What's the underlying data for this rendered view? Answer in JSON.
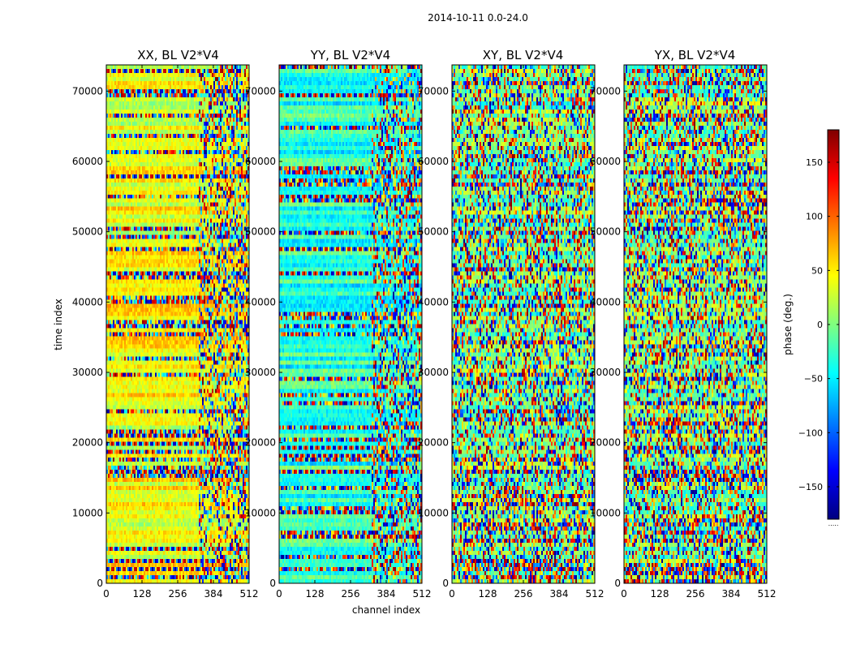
{
  "figure": {
    "suptitle": "2014-10-11 0.0-24.0"
  },
  "chart_data": [
    {
      "type": "heatmap",
      "title": "XX, BL V2*V4",
      "xlabel": "channel index",
      "ylabel": "time index",
      "xlim": [
        0,
        512
      ],
      "ylim": [
        0,
        73728
      ],
      "xticks": [
        0,
        128,
        256,
        384,
        512
      ],
      "yticks": [
        0,
        10000,
        20000,
        30000,
        40000,
        50000,
        60000,
        70000
      ],
      "phase_bias_deg": 40,
      "transition_channel": 330
    },
    {
      "type": "heatmap",
      "title": "YY, BL V2*V4",
      "xlabel": "channel index",
      "ylabel": "time index",
      "xlim": [
        0,
        512
      ],
      "ylim": [
        0,
        73728
      ],
      "xticks": [
        0,
        128,
        256,
        384,
        512
      ],
      "yticks": [
        0,
        10000,
        20000,
        30000,
        40000,
        50000,
        60000,
        70000
      ],
      "phase_bias_deg": -30,
      "transition_channel": 330
    },
    {
      "type": "heatmap",
      "title": "XY, BL V2*V4",
      "xlabel": "channel index",
      "ylabel": "time index",
      "xlim": [
        0,
        512
      ],
      "ylim": [
        0,
        73728
      ],
      "xticks": [
        0,
        128,
        256,
        384,
        512
      ],
      "yticks": [
        0,
        10000,
        20000,
        30000,
        40000,
        50000,
        60000,
        70000
      ],
      "phase_bias_deg": 0,
      "transition_channel": 0
    },
    {
      "type": "heatmap",
      "title": "YX, BL V2*V4",
      "xlabel": "channel index",
      "ylabel": "time index",
      "xlim": [
        0,
        512
      ],
      "ylim": [
        0,
        73728
      ],
      "xticks": [
        0,
        128,
        256,
        384,
        512
      ],
      "yticks": [
        0,
        10000,
        20000,
        30000,
        40000,
        50000,
        60000,
        70000
      ],
      "phase_bias_deg": 0,
      "transition_channel": 0
    }
  ],
  "colorbar": {
    "label": "phase (deg.)",
    "range": [
      -180,
      180
    ],
    "ticks": [
      -150,
      -100,
      -50,
      0,
      50,
      100,
      150
    ],
    "tick_labels": [
      "−150",
      "−100",
      "−50",
      "0",
      "50",
      "100",
      "150"
    ],
    "colormap": "jet",
    "colormap_stops": [
      "#00007f",
      "#0000ff",
      "#007fff",
      "#00ffff",
      "#7fff7f",
      "#ffff00",
      "#ff7f00",
      "#ff0000",
      "#7f0000"
    ],
    "footer": "....."
  },
  "colors": {
    "axes_edge": "#000000",
    "background": "#ffffff"
  }
}
